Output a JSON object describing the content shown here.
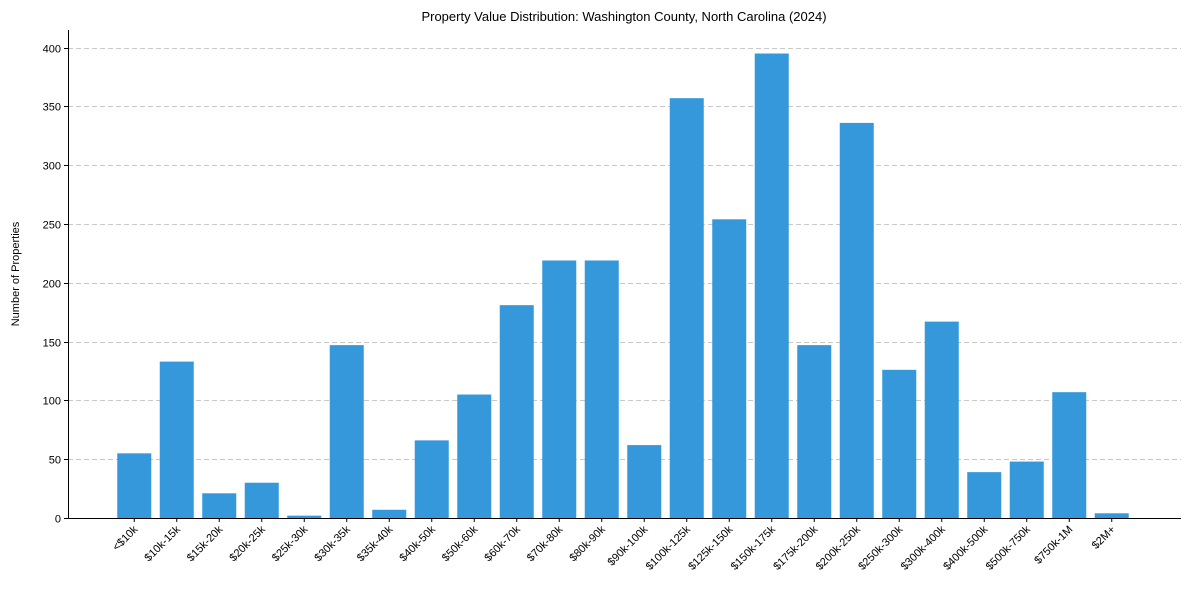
{
  "chart_data": {
    "type": "bar",
    "title": "Property Value Distribution: Washington County, North Carolina (2024)",
    "xlabel": "",
    "ylabel": "Number of Properties",
    "categories": [
      "<$10k",
      "$10k-15k",
      "$15k-20k",
      "$20k-25k",
      "$25k-30k",
      "$30k-35k",
      "$35k-40k",
      "$40k-50k",
      "$50k-60k",
      "$60k-70k",
      "$70k-80k",
      "$80k-90k",
      "$90k-100k",
      "$100k-125k",
      "$125k-150k",
      "$150k-175k",
      "$175k-200k",
      "$200k-250k",
      "$250k-300k",
      "$300k-400k",
      "$400k-500k",
      "$500k-750k",
      "$750k-1M",
      "$2M+"
    ],
    "values": [
      55,
      133,
      21,
      30,
      2,
      147,
      7,
      66,
      105,
      181,
      219,
      219,
      62,
      357,
      254,
      395,
      147,
      336,
      126,
      167,
      39,
      48,
      107,
      4
    ],
    "yticks": [
      0,
      50,
      100,
      150,
      200,
      250,
      300,
      350,
      400
    ],
    "ylim": [
      0,
      415
    ],
    "grid": "y-dashed",
    "bar_color": "#3498db"
  }
}
